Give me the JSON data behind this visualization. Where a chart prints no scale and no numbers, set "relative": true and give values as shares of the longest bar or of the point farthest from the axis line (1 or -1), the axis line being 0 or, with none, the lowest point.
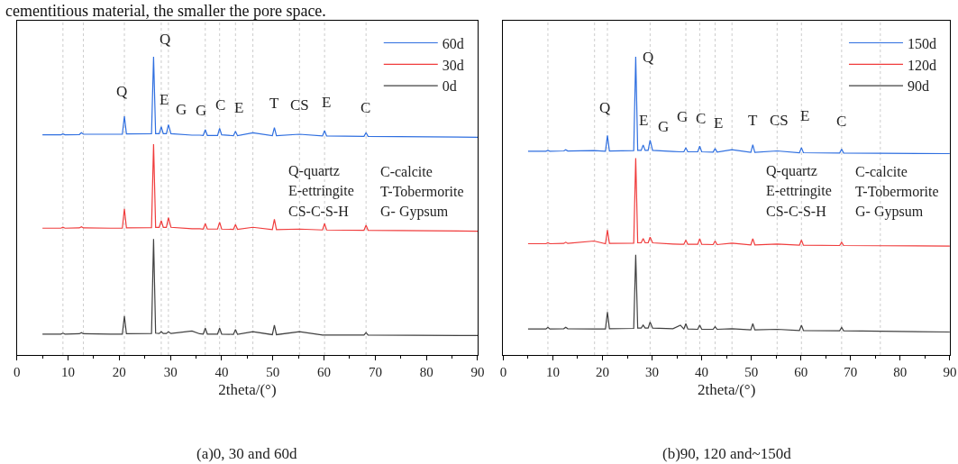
{
  "chart_data": [
    {
      "type": "line",
      "relative": true,
      "xlabel": "2theta/(°)",
      "xlim": [
        0,
        90
      ],
      "xticks": [
        0,
        10,
        20,
        30,
        40,
        50,
        60,
        70,
        80,
        90
      ],
      "tick_labels": "x",
      "legend": "top right",
      "grid": false,
      "x": [
        5,
        8.6,
        9,
        9.4,
        12.2,
        12.6,
        13,
        18.3,
        20.6,
        21,
        21.4,
        26.3,
        26.7,
        27.1,
        27.8,
        28.2,
        28.6,
        29.2,
        29.6,
        30.1,
        34.2,
        35.7,
        36.4,
        36.8,
        37.2,
        39.2,
        39.6,
        40,
        42.3,
        42.7,
        43.1,
        46.1,
        49.9,
        50.3,
        50.7,
        55.2,
        59.7,
        60.1,
        60.5,
        67.8,
        68.2,
        68.6,
        90
      ],
      "series": [
        {
          "name": "60d",
          "color": "#2f6fe0",
          "values": [
            0.738,
            0.738,
            0.741,
            0.738,
            0.739,
            0.745,
            0.74,
            0.74,
            0.74,
            0.8,
            0.741,
            0.742,
            1,
            0.742,
            0.742,
            0.765,
            0.742,
            0.742,
            0.772,
            0.742,
            0.737,
            0.737,
            0.736,
            0.755,
            0.736,
            0.736,
            0.76,
            0.738,
            0.735,
            0.75,
            0.735,
            0.745,
            0.735,
            0.762,
            0.735,
            0.74,
            0.734,
            0.752,
            0.734,
            0.733,
            0.745,
            0.733,
            0.73
          ]
        },
        {
          "name": "30d",
          "color": "#f03c3c",
          "values": [
            0.425,
            0.425,
            0.428,
            0.425,
            0.426,
            0.43,
            0.426,
            0.425,
            0.425,
            0.49,
            0.426,
            0.427,
            0.707,
            0.428,
            0.428,
            0.45,
            0.428,
            0.428,
            0.46,
            0.428,
            0.423,
            0.423,
            0.422,
            0.44,
            0.422,
            0.422,
            0.445,
            0.422,
            0.421,
            0.437,
            0.421,
            0.428,
            0.42,
            0.455,
            0.42,
            0.422,
            0.419,
            0.44,
            0.419,
            0.418,
            0.435,
            0.418,
            0.415
          ]
        },
        {
          "name": "0d",
          "color": "#404040",
          "values": [
            0.07,
            0.07,
            0.073,
            0.07,
            0.071,
            0.075,
            0.071,
            0.07,
            0.07,
            0.13,
            0.071,
            0.072,
            0.389,
            0.073,
            0.072,
            0.078,
            0.072,
            0.072,
            0.078,
            0.072,
            0.08,
            0.071,
            0.07,
            0.09,
            0.07,
            0.07,
            0.09,
            0.07,
            0.069,
            0.085,
            0.069,
            0.078,
            0.068,
            0.1,
            0.068,
            0.078,
            0.067,
            0.067,
            0.067,
            0.067,
            0.075,
            0.067,
            0.065
          ]
        }
      ],
      "ref_lines": [
        {
          "axis": "x",
          "value": 9,
          "color": "#cccccc",
          "line_style": "dotted"
        },
        {
          "axis": "x",
          "value": 13,
          "color": "#cccccc",
          "line_style": "dotted"
        },
        {
          "axis": "x",
          "value": 21,
          "color": "#cccccc",
          "line_style": "dotted"
        },
        {
          "axis": "x",
          "value": 28.2,
          "color": "#cccccc",
          "line_style": "dotted"
        },
        {
          "axis": "x",
          "value": 29.6,
          "color": "#cccccc",
          "line_style": "dotted"
        },
        {
          "axis": "x",
          "value": 36.8,
          "color": "#cccccc",
          "line_style": "dotted"
        },
        {
          "axis": "x",
          "value": 39.6,
          "color": "#cccccc",
          "line_style": "dotted"
        },
        {
          "axis": "x",
          "value": 42.7,
          "color": "#cccccc",
          "line_style": "dotted"
        },
        {
          "axis": "x",
          "value": 46.1,
          "color": "#cccccc",
          "line_style": "dotted"
        },
        {
          "axis": "x",
          "value": 55.2,
          "color": "#cccccc",
          "line_style": "dotted"
        },
        {
          "axis": "x",
          "value": 60.1,
          "color": "#cccccc",
          "line_style": "dotted"
        },
        {
          "axis": "x",
          "value": 68.2,
          "color": "#cccccc",
          "line_style": "dotted"
        }
      ],
      "annotations": [
        "Q-quartz",
        "C-calcite",
        "E-ettringite",
        "T-Tobermorite",
        "CS-C-S-H",
        "G- Gypsum",
        "(a)0, 30 and 60d",
        "cementitious material, the smaller the pore space.",
        {
          "text": "Q",
          "x": 20.4,
          "y": 0.8
        },
        {
          "text": "Q",
          "x": 28.9,
          "y": 0.975
        },
        {
          "text": "E",
          "x": 28.7,
          "y": 0.772
        },
        {
          "text": "G",
          "x": 32.1,
          "y": 0.741
        },
        {
          "text": "G",
          "x": 35.9,
          "y": 0.737
        },
        {
          "text": "C",
          "x": 39.8,
          "y": 0.755
        },
        {
          "text": "E",
          "x": 43.3,
          "y": 0.745
        },
        {
          "text": "T",
          "x": 50.3,
          "y": 0.762
        },
        {
          "text": "CS",
          "x": 55.3,
          "y": 0.755
        },
        {
          "text": "E",
          "x": 60.5,
          "y": 0.765
        },
        {
          "text": "C",
          "x": 68.1,
          "y": 0.745
        }
      ]
    },
    {
      "type": "line",
      "relative": true,
      "xlabel": "2theta/(°)",
      "xlim": [
        0,
        90
      ],
      "xticks": [
        0,
        10,
        20,
        30,
        40,
        50,
        60,
        70,
        80,
        90
      ],
      "tick_labels": "x",
      "legend": "top right",
      "grid": false,
      "x": [
        5,
        8.6,
        9,
        9.4,
        12.2,
        12.6,
        13,
        18.3,
        20.6,
        21,
        21.4,
        26.3,
        26.7,
        27.1,
        27.8,
        28.2,
        28.6,
        29.2,
        29.6,
        30.1,
        34.2,
        35.7,
        36.4,
        36.8,
        37.2,
        39.2,
        39.6,
        40,
        42.3,
        42.7,
        43.1,
        46.1,
        49.9,
        50.3,
        50.7,
        55.2,
        59.7,
        60.1,
        60.5,
        67.8,
        68.2,
        68.6,
        90
      ],
      "series": [
        {
          "name": "150d",
          "color": "#2f6fe0",
          "values": [
            0.683,
            0.683,
            0.686,
            0.683,
            0.684,
            0.688,
            0.684,
            0.685,
            0.683,
            0.736,
            0.684,
            0.685,
            1,
            0.686,
            0.686,
            0.704,
            0.686,
            0.686,
            0.72,
            0.686,
            0.682,
            0.681,
            0.681,
            0.695,
            0.681,
            0.681,
            0.7,
            0.681,
            0.68,
            0.692,
            0.68,
            0.688,
            0.679,
            0.705,
            0.679,
            0.684,
            0.678,
            0.695,
            0.678,
            0.677,
            0.69,
            0.677,
            0.675
          ]
        },
        {
          "name": "120d",
          "color": "#f03c3c",
          "values": [
            0.373,
            0.373,
            0.376,
            0.373,
            0.374,
            0.378,
            0.374,
            0.382,
            0.373,
            0.419,
            0.374,
            0.375,
            0.66,
            0.376,
            0.376,
            0.39,
            0.376,
            0.376,
            0.395,
            0.376,
            0.372,
            0.371,
            0.371,
            0.385,
            0.371,
            0.371,
            0.39,
            0.371,
            0.37,
            0.382,
            0.37,
            0.375,
            0.369,
            0.39,
            0.369,
            0.372,
            0.368,
            0.385,
            0.368,
            0.367,
            0.378,
            0.367,
            0.365
          ]
        },
        {
          "name": "90d",
          "color": "#404040",
          "values": [
            0.087,
            0.087,
            0.093,
            0.087,
            0.088,
            0.093,
            0.088,
            0.087,
            0.087,
            0.144,
            0.088,
            0.089,
            0.336,
            0.09,
            0.09,
            0.1,
            0.09,
            0.09,
            0.11,
            0.09,
            0.088,
            0.1,
            0.087,
            0.105,
            0.087,
            0.086,
            0.1,
            0.086,
            0.086,
            0.095,
            0.086,
            0.088,
            0.084,
            0.105,
            0.084,
            0.086,
            0.082,
            0.1,
            0.082,
            0.081,
            0.092,
            0.081,
            0.077
          ]
        }
      ],
      "ref_lines": [
        {
          "axis": "x",
          "value": 9,
          "color": "#cccccc",
          "line_style": "dotted"
        },
        {
          "axis": "x",
          "value": 18.4,
          "color": "#cccccc",
          "line_style": "dotted"
        },
        {
          "axis": "x",
          "value": 21,
          "color": "#cccccc",
          "line_style": "dotted"
        },
        {
          "axis": "x",
          "value": 29.6,
          "color": "#cccccc",
          "line_style": "dotted"
        },
        {
          "axis": "x",
          "value": 36.8,
          "color": "#cccccc",
          "line_style": "dotted"
        },
        {
          "axis": "x",
          "value": 39.6,
          "color": "#cccccc",
          "line_style": "dotted"
        },
        {
          "axis": "x",
          "value": 42.7,
          "color": "#cccccc",
          "line_style": "dotted"
        },
        {
          "axis": "x",
          "value": 46.1,
          "color": "#cccccc",
          "line_style": "dotted"
        },
        {
          "axis": "x",
          "value": 55.2,
          "color": "#cccccc",
          "line_style": "dotted"
        },
        {
          "axis": "x",
          "value": 60.1,
          "color": "#cccccc",
          "line_style": "dotted"
        },
        {
          "axis": "x",
          "value": 68.2,
          "color": "#cccccc",
          "line_style": "dotted"
        },
        {
          "axis": "x",
          "value": 76,
          "color": "#cccccc",
          "line_style": "dotted"
        }
      ],
      "annotations": [
        "Q-quartz",
        "C-calcite",
        "E-ettringite",
        "T-Tobermorite",
        "CS-C-S-H",
        "G- Gypsum",
        "(b)90, 120 and~150d",
        {
          "text": "Q",
          "x": 20.5,
          "y": 0.745
        },
        {
          "text": "Q",
          "x": 29.1,
          "y": 0.915
        },
        {
          "text": "E",
          "x": 28.2,
          "y": 0.704
        },
        {
          "text": "G",
          "x": 32.3,
          "y": 0.683
        },
        {
          "text": "G",
          "x": 36.1,
          "y": 0.715
        },
        {
          "text": "C",
          "x": 39.8,
          "y": 0.71
        },
        {
          "text": "E",
          "x": 43.4,
          "y": 0.695
        },
        {
          "text": "T",
          "x": 50.3,
          "y": 0.705
        },
        {
          "text": "CS",
          "x": 55.6,
          "y": 0.705
        },
        {
          "text": "E",
          "x": 60.7,
          "y": 0.72
        },
        {
          "text": "C",
          "x": 68.2,
          "y": 0.7
        }
      ]
    }
  ]
}
